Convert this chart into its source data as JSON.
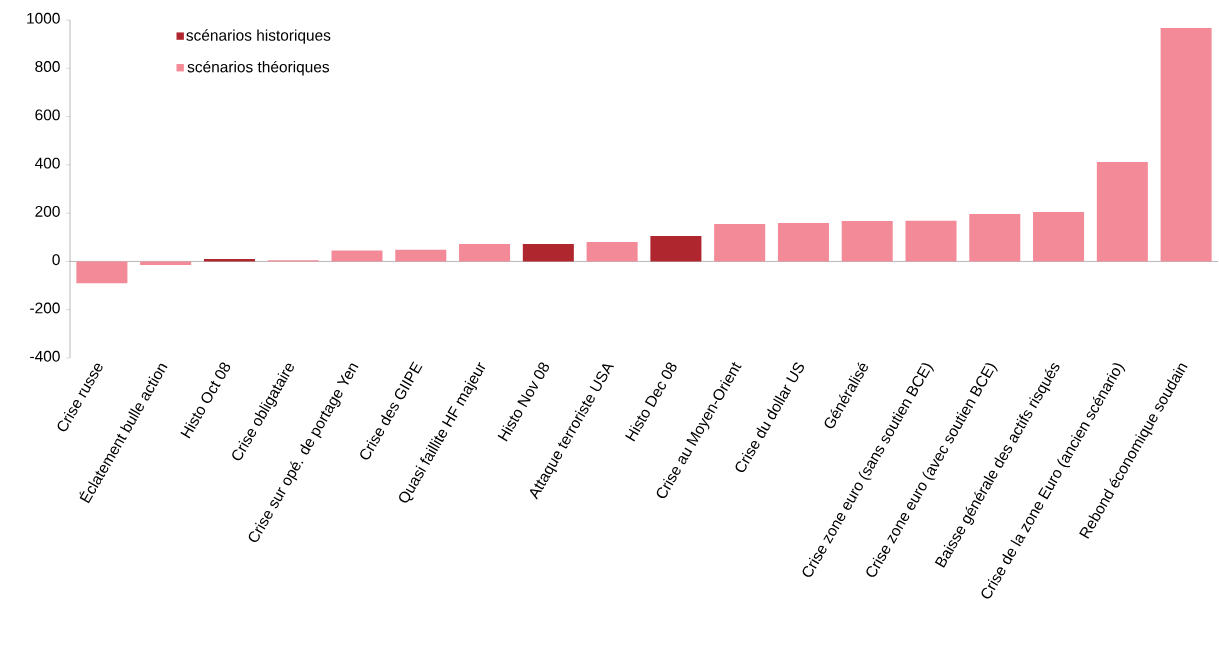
{
  "chart_data": {
    "type": "bar",
    "categories": [
      "Crise russe",
      "Éclatement bulle action",
      "Histo Oct 08",
      "Crise obligataire",
      "Crise sur opé. de portage Yen",
      "Crise des GIIPE",
      "Quasi faillite HF majeur",
      "Histo Nov 08",
      "Attaque terroriste USA",
      "Histo Dec 08",
      "Crise au Moyen-Orient",
      "Crise du dollar US",
      "Généralisé",
      "Crise zone euro (sans soutien BCE)",
      "Crise zone euro (avec soutien BCE)",
      "Baisse générale des actifs risqués",
      "Crise de la zone Euro (ancien scénario)",
      "Rebond économique soudain"
    ],
    "series": [
      {
        "name": "scénarios historiques",
        "color": "#b0262f",
        "values": [
          null,
          null,
          10,
          null,
          null,
          null,
          null,
          72,
          null,
          105,
          null,
          null,
          null,
          null,
          null,
          null,
          null,
          null
        ]
      },
      {
        "name": "scénarios théoriques",
        "color": "#f38a97",
        "values": [
          -90,
          -15,
          null,
          5,
          45,
          48,
          72,
          null,
          80,
          null,
          155,
          159,
          167,
          168,
          196,
          205,
          412,
          967
        ]
      }
    ],
    "ylim": [
      -400,
      1000
    ],
    "yticks": [
      -400,
      -200,
      0,
      200,
      400,
      600,
      800,
      1000
    ],
    "legend": "top left"
  }
}
